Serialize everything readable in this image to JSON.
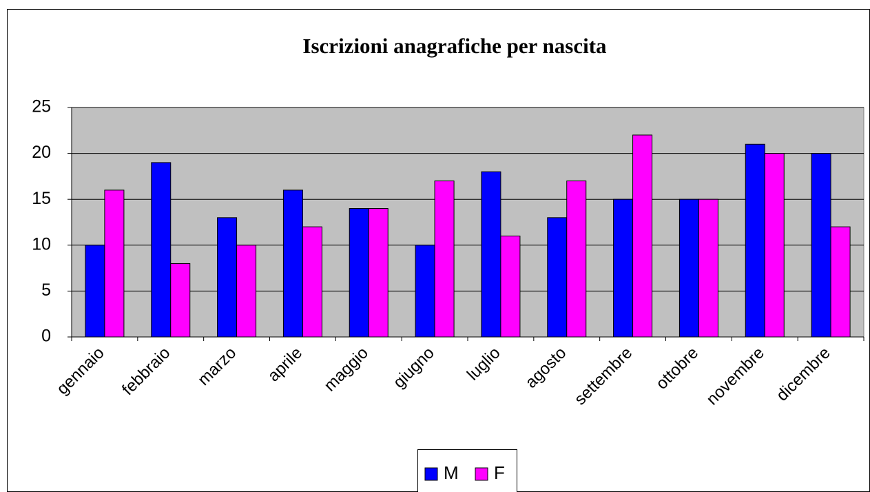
{
  "chart_data": {
    "type": "bar",
    "title": "Iscrizioni anagrafiche per nascita",
    "categories": [
      "gennaio",
      "febbraio",
      "marzo",
      "aprile",
      "maggio",
      "giugno",
      "luglio",
      "agosto",
      "settembre",
      "ottobre",
      "novembre",
      "dicembre"
    ],
    "series": [
      {
        "name": "M",
        "color": "#0000ff",
        "values": [
          10,
          19,
          13,
          16,
          14,
          10,
          18,
          13,
          15,
          15,
          21,
          20
        ]
      },
      {
        "name": "F",
        "color": "#ff00ff",
        "values": [
          16,
          8,
          10,
          12,
          14,
          17,
          11,
          17,
          22,
          15,
          20,
          12
        ]
      }
    ],
    "ylim": [
      0,
      25
    ],
    "yticks": [
      0,
      5,
      10,
      15,
      20,
      25
    ],
    "grid": true,
    "legend": "bottom"
  }
}
